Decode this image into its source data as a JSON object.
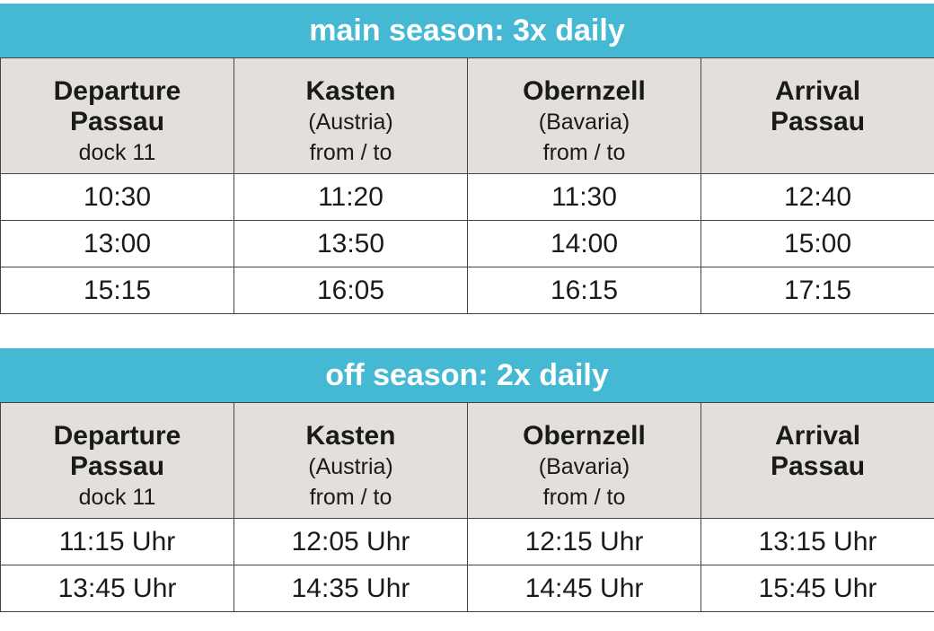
{
  "sections": [
    {
      "title": "main season: 3x daily",
      "columns": [
        {
          "name": [
            "Departure",
            "Passau"
          ],
          "details": [
            "dock 11"
          ]
        },
        {
          "name": [
            "Kasten"
          ],
          "details": [
            "(Austria)",
            "from / to"
          ]
        },
        {
          "name": [
            "Obernzell"
          ],
          "details": [
            "(Bavaria)",
            "from / to"
          ]
        },
        {
          "name": [
            "Arrival",
            "Passau"
          ]
        }
      ],
      "rows": [
        [
          "10:30",
          "11:20",
          "11:30",
          "12:40"
        ],
        [
          "13:00",
          "13:50",
          "14:00",
          "15:00"
        ],
        [
          "15:15",
          "16:05",
          "16:15",
          "17:15"
        ]
      ]
    },
    {
      "title": "off season: 2x daily",
      "columns": [
        {
          "name": [
            "Departure",
            "Passau"
          ],
          "details": [
            "dock 11"
          ]
        },
        {
          "name": [
            "Kasten"
          ],
          "details": [
            "(Austria)",
            "from / to"
          ]
        },
        {
          "name": [
            "Obernzell"
          ],
          "details": [
            "(Bavaria)",
            "from / to"
          ]
        },
        {
          "name": [
            "Arrival",
            "Passau"
          ]
        }
      ],
      "rows": [
        [
          "11:15 Uhr",
          "12:05 Uhr",
          "12:15 Uhr",
          "13:15 Uhr"
        ],
        [
          "13:45 Uhr",
          "14:35 Uhr",
          "14:45 Uhr",
          "15:45 Uhr"
        ]
      ]
    }
  ]
}
